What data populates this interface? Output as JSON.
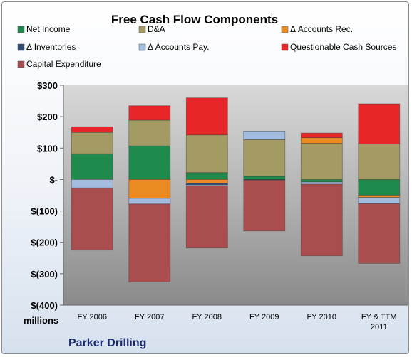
{
  "chart_data": {
    "type": "bar",
    "stacked": true,
    "title": "Free Cash Flow Components",
    "ylabel": "",
    "xlabel": "",
    "units_label": "millions",
    "company_label": "Parker Drilling",
    "ylim": [
      -400,
      300
    ],
    "yticks": [
      300,
      200,
      100,
      0,
      -100,
      -200,
      -300,
      -400
    ],
    "ytick_labels": [
      "$300",
      "$200",
      "$100",
      "$-",
      "$(100)",
      "$(200)",
      "$(300)",
      "$(400)"
    ],
    "categories": [
      "FY 2006",
      "FY 2007",
      "FY 2008",
      "FY 2009",
      "FY 2010",
      "FY & TTM 2011"
    ],
    "category_lines": [
      [
        "FY 2006"
      ],
      [
        "FY 2007"
      ],
      [
        "FY 2008"
      ],
      [
        "FY 2009"
      ],
      [
        "FY 2010"
      ],
      [
        "FY & TTM",
        "2011"
      ]
    ],
    "series": [
      {
        "name": "Net Income",
        "color": "#1e8a4c",
        "values": [
          82,
          107,
          22,
          10,
          -8,
          -50
        ]
      },
      {
        "name": "D&A",
        "color": "#a49a63",
        "values": [
          68,
          82,
          120,
          117,
          115,
          113
        ]
      },
      {
        "name": "Δ Accounts Rec.",
        "color": "#ec8a22",
        "values": [
          0,
          -60,
          -12,
          0,
          18,
          -7
        ]
      },
      {
        "name": "Δ Inventories",
        "color": "#2f4d73",
        "values": [
          0,
          0,
          -5,
          -2,
          0,
          0
        ]
      },
      {
        "name": "Δ Accounts Pay.",
        "color": "#a3bde0",
        "values": [
          -27,
          -18,
          -3,
          27,
          -7,
          -20
        ]
      },
      {
        "name": "Questionable Cash Sources",
        "color": "#e8262a",
        "values": [
          18,
          46,
          118,
          0,
          15,
          128
        ]
      },
      {
        "name": "Capital Expenditure",
        "color": "#aa4d4f",
        "values": [
          -198,
          -248,
          -198,
          -162,
          -228,
          -190
        ]
      }
    ],
    "grid": false,
    "legend_position": "top"
  }
}
